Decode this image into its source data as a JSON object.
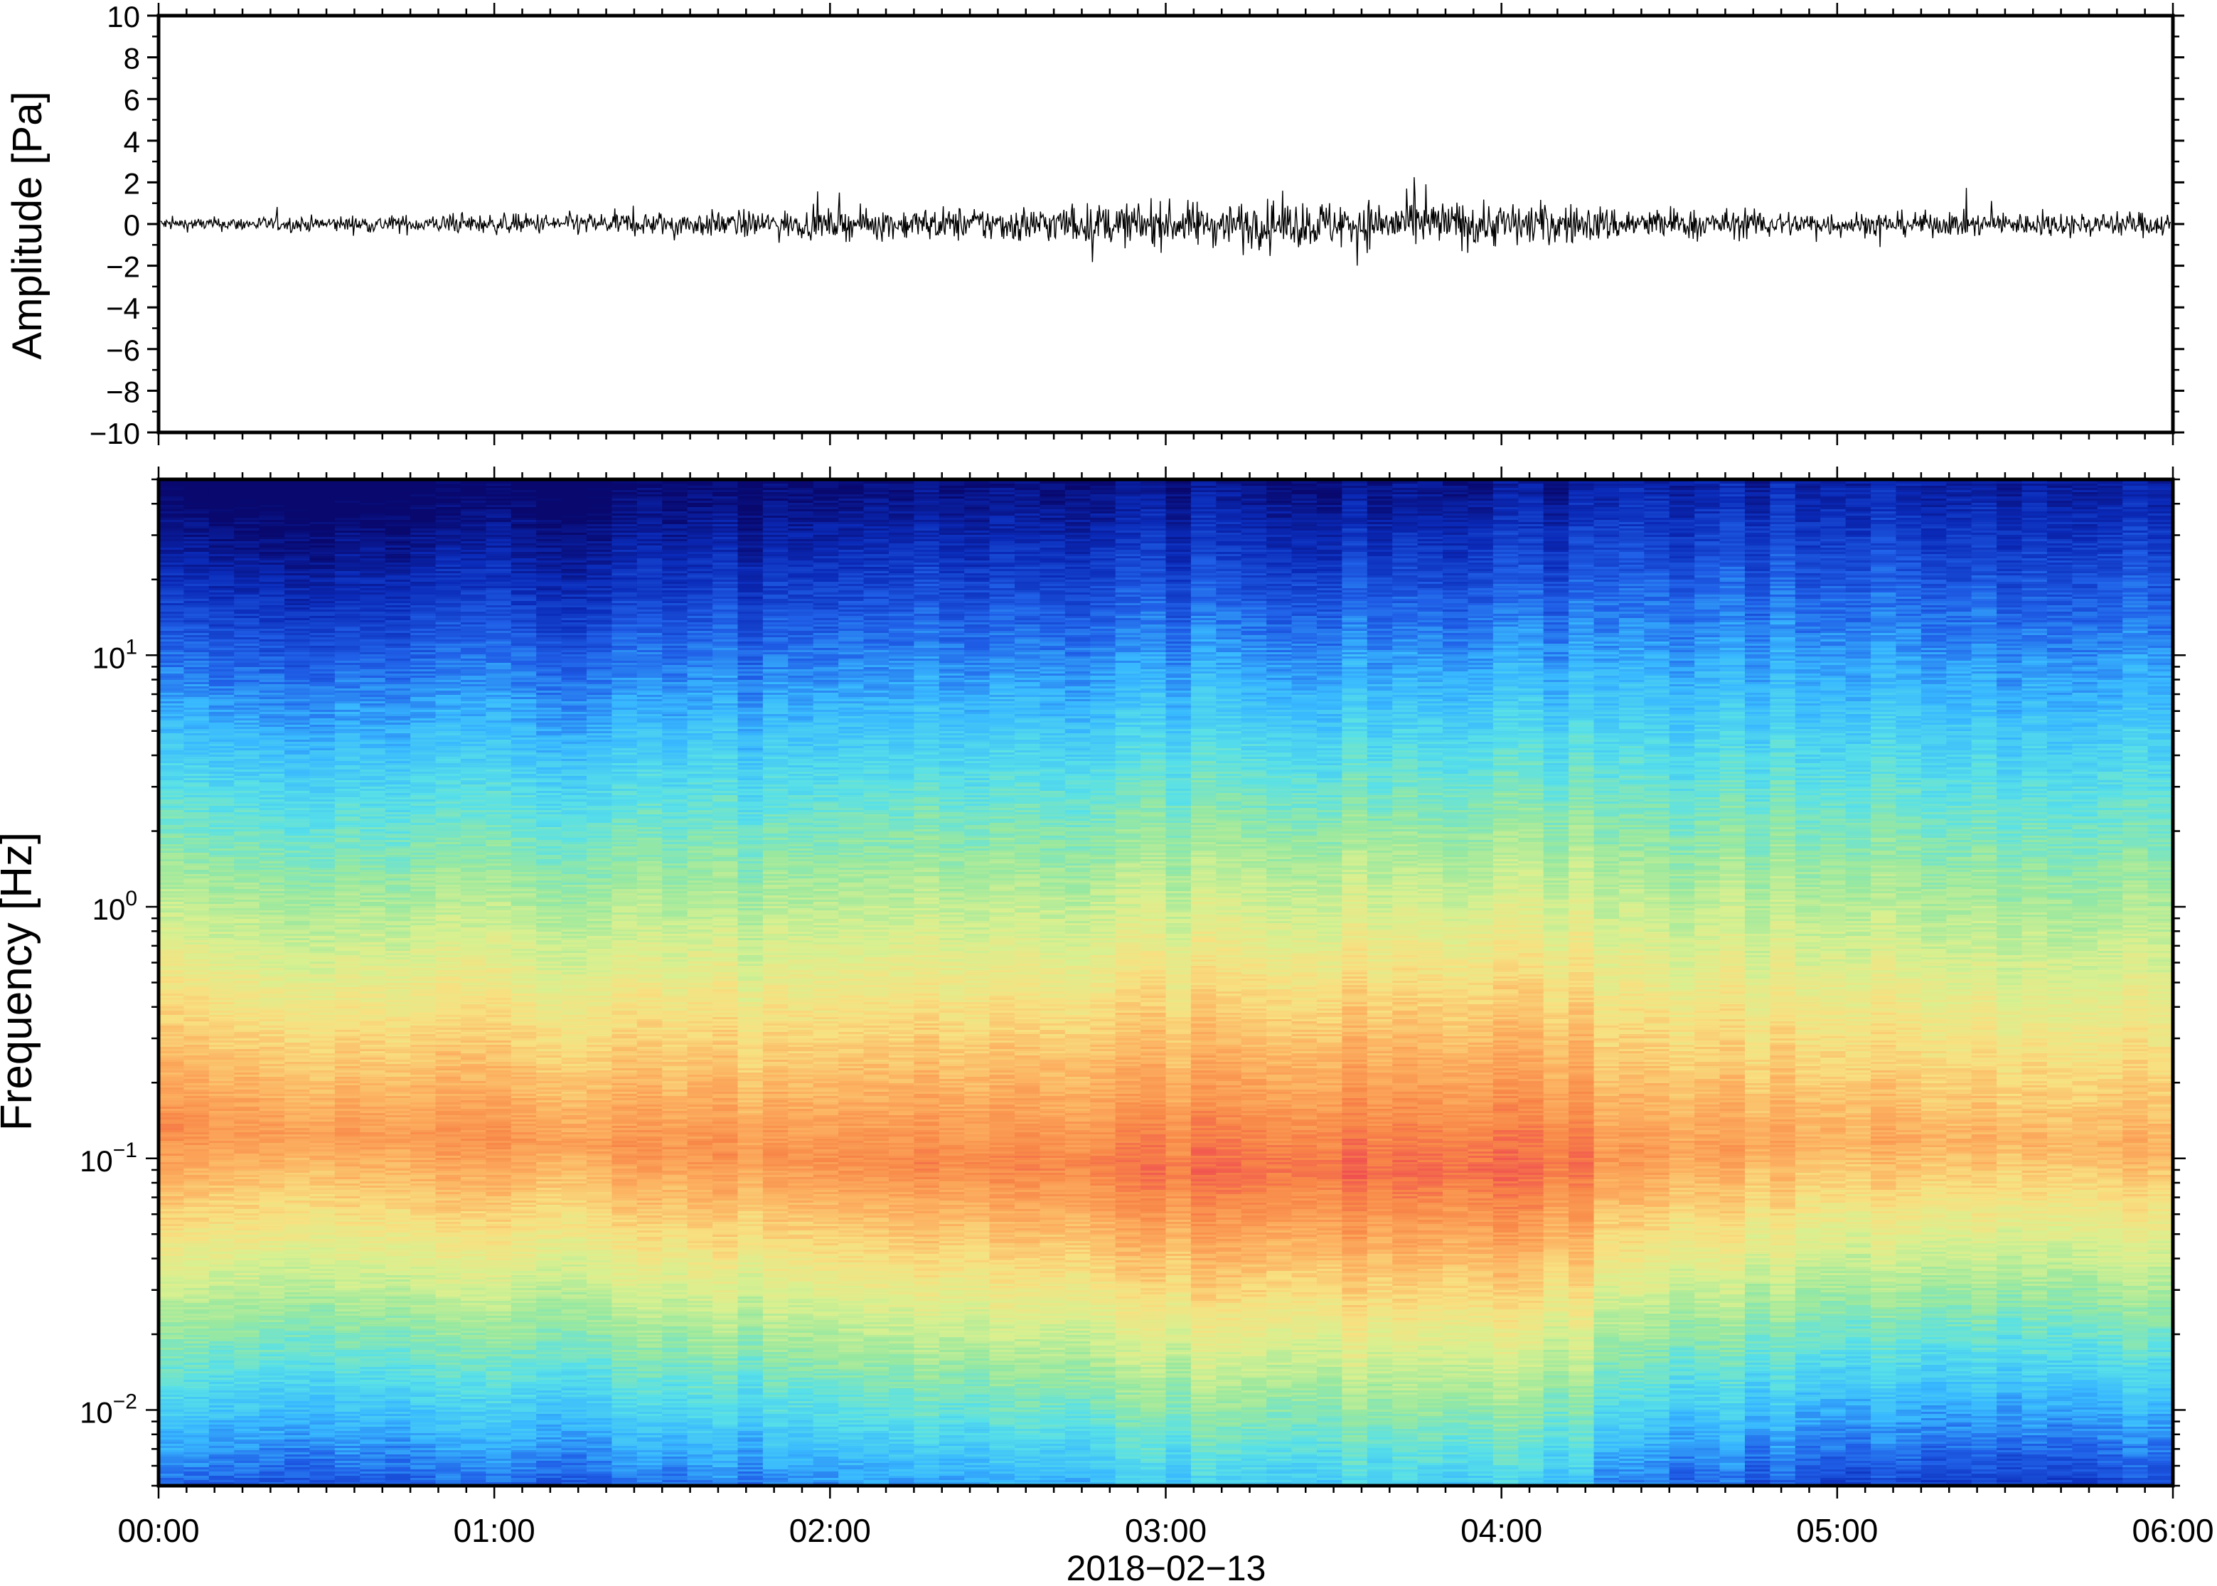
{
  "colors": {
    "frame": "#000000",
    "trace": "#000000",
    "colormap": [
      "#08086e",
      "#0a2ab8",
      "#2060e8",
      "#38b8ff",
      "#58e0e8",
      "#98e8a0",
      "#d8f090",
      "#f8e080",
      "#fcb060",
      "#f88848",
      "#f05050"
    ]
  },
  "chart_data": [
    {
      "type": "line",
      "panel": "waveform",
      "ylabel": "Amplitude [Pa]",
      "ylim": [
        -10,
        10
      ],
      "y_ticks": [
        "10",
        "8",
        "6",
        "4",
        "2",
        "0",
        "−2",
        "−4",
        "−6",
        "−8",
        "−10"
      ],
      "x_start": "2018-02-13 00:00",
      "x_end": "2018-02-13 06:00",
      "series": [
        {
          "x_hours": [
            0,
            0.5,
            1,
            1.5,
            2,
            2.5,
            3,
            3.5,
            4,
            4.5,
            5,
            5.5,
            6
          ],
          "envelope_pa": [
            0.35,
            0.45,
            0.55,
            0.7,
            0.8,
            1.0,
            1.2,
            1.35,
            1.3,
            0.85,
            0.7,
            0.65,
            0.7
          ]
        }
      ],
      "grid": false
    },
    {
      "type": "heatmap",
      "panel": "spectrogram",
      "ylabel": "Frequency [Hz]",
      "xlabel": "2018−02−13",
      "y_scale": "log",
      "ylim_hz": [
        0.005,
        50
      ],
      "y_ticks": [
        {
          "base": "10",
          "exp": "1"
        },
        {
          "base": "10",
          "exp": "0"
        },
        {
          "base": "10",
          "exp": "−1"
        },
        {
          "base": "10",
          "exp": "−2"
        }
      ],
      "x_ticks": [
        "00:00",
        "01:00",
        "02:00",
        "03:00",
        "04:00",
        "05:00",
        "06:00"
      ],
      "x_hours": [
        0,
        1,
        2,
        3,
        4,
        5,
        6
      ],
      "hot_band_peak_hz": [
        0.13,
        0.12,
        0.1,
        0.09,
        0.09,
        0.12,
        0.11
      ],
      "dark_top_cutoff_hz": [
        15,
        18,
        22,
        28,
        28,
        45,
        38
      ],
      "event_change_hour": 4.3,
      "grid": false
    }
  ]
}
